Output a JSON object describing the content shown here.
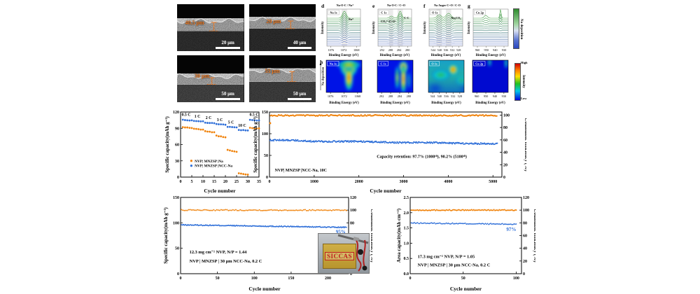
{
  "sem": {
    "panels": [
      {
        "measurement": "40.5 μm",
        "scale_bar": "20 μm"
      },
      {
        "measurement": "20 μm",
        "scale_bar": "40 μm"
      },
      {
        "measurement": "30 μm",
        "scale_bar": "50 μm"
      },
      {
        "measurement": "55 μm",
        "scale_bar": "50 μm"
      }
    ]
  },
  "xps": {
    "xlabel": "Binding Energy (eV)",
    "ylabel": "Intensity",
    "waterfalls": [
      {
        "letter": "d",
        "title": "Na-O-C / Na⁺",
        "species": "Na 1s",
        "annotations": [
          "Na⁺"
        ],
        "ticks": [
          "1076",
          "1072",
          "1068"
        ]
      },
      {
        "letter": "e",
        "title": "Na-O-C / C=O",
        "species": "C 1s",
        "annotations": [
          "CO₃²⁻/C=O",
          "C-C"
        ],
        "ticks": [
          "292",
          "288",
          "284",
          "280"
        ]
      },
      {
        "letter": "f",
        "title": "Na Auger C=O / C-O",
        "species": "O 1s",
        "annotations": [
          "Na₂CO₃"
        ],
        "ticks": [
          "544",
          "540",
          "536",
          "532",
          "528"
        ]
      },
      {
        "letter": "g",
        "title": "",
        "species": "Cu 2p",
        "annotations": [],
        "ticks": [
          "960",
          "950",
          "940",
          "930"
        ]
      }
    ],
    "heatmaps": [
      {
        "letter": "h",
        "species": "Na 1s",
        "ticks": [
          "1076",
          "1072",
          "1068"
        ],
        "ylabel": "Na deposition"
      },
      {
        "letter": "",
        "species": "C 1s",
        "ticks": [
          "292",
          "288",
          "284",
          "280"
        ],
        "ylabel": ""
      },
      {
        "letter": "",
        "species": "O 1s",
        "ticks": [
          "544",
          "540",
          "536",
          "532",
          "528"
        ],
        "ylabel": ""
      },
      {
        "letter": "",
        "species": "Cu 2p",
        "ticks": [
          "960",
          "950",
          "940",
          "930"
        ],
        "ylabel": ""
      }
    ],
    "colorbar_top": {
      "label": "Na deposition"
    },
    "colorbar_bottom": {
      "label": "Intensity",
      "high": "High",
      "low": "Low"
    }
  },
  "inset": {
    "label": "SICCAS"
  },
  "chart_data": [
    {
      "id": "rate",
      "type": "scatter",
      "xlabel": "Cycle number",
      "ylabel": "Specific capacity(mAh g⁻¹)",
      "xlim": [
        0,
        35
      ],
      "ylim": [
        0,
        120
      ],
      "xticks": [
        0,
        5,
        10,
        15,
        20,
        25,
        30,
        35
      ],
      "yticks": [
        0,
        30,
        60,
        90,
        120
      ],
      "cycles_per_step": 5,
      "rate_labels": [
        {
          "text": "0.5 C",
          "x": 2.5,
          "y": 113
        },
        {
          "text": "1 C",
          "x": 7.5,
          "y": 110
        },
        {
          "text": "2 C",
          "x": 12.5,
          "y": 107
        },
        {
          "text": "3 C",
          "x": 17.5,
          "y": 103.5
        },
        {
          "text": "5 C",
          "x": 22.5,
          "y": 99
        },
        {
          "text": "10 C",
          "x": 27.5,
          "y": 93
        },
        {
          "text": "0.5 C",
          "x": 32.8,
          "y": 113
        }
      ],
      "series": [
        {
          "name": "NVP| MNZSP |Na",
          "color": "#f0820a",
          "steps": [
            [
              92,
              90.5
            ],
            [
              89,
              87.5
            ],
            [
              84.5,
              82.5
            ],
            [
              76.5,
              73
            ],
            [
              50,
              46.5
            ],
            [
              7,
              4.5
            ],
            [
              91,
              89.5
            ]
          ]
        },
        {
          "name": "NVP| MNZSP |NCC-Na",
          "color": "#2d6ed8",
          "steps": [
            [
              105.5,
              104.5
            ],
            [
              103.5,
              103
            ],
            [
              100.5,
              99.5
            ],
            [
              97.5,
              96.5
            ],
            [
              93,
              92
            ],
            [
              87,
              86
            ],
            [
              105.5,
              104.5
            ]
          ]
        }
      ],
      "legend_position": "lower-left",
      "grid": false
    },
    {
      "id": "longcycle",
      "type": "scatter",
      "xlabel": "Cycle number",
      "ylabel": "Specific capacity(mAh g⁻¹)",
      "y2label": "Coulombic efficiency (%)",
      "xlim": [
        0,
        5200
      ],
      "ylim": [
        0,
        150
      ],
      "y2lim": [
        0,
        105
      ],
      "xticks": [
        0,
        1000,
        2000,
        3000,
        4000,
        5000
      ],
      "yticks": [
        0,
        50,
        100,
        150
      ],
      "y2ticks": [
        0,
        20,
        40,
        60,
        80,
        100
      ],
      "series": [
        {
          "name": "capacity",
          "axis": "left",
          "color": "#2d6ed8",
          "summary": {
            "start": 85,
            "at_1000": 83.1,
            "end": 76.7,
            "end_cycle": 5100
          }
        },
        {
          "name": "coulombic_efficiency",
          "axis": "right",
          "color": "#f0820a",
          "value": 99.4,
          "first_cycle_value": 87
        }
      ],
      "annotations": [
        {
          "text": "Capacity retention: 97.7% (1000ᵗʰ), 90.2% (5100ᵗʰ)"
        },
        {
          "text": "NVP| MNZSP |NCC-Na, 10C"
        }
      ],
      "grid": false
    },
    {
      "id": "pouch1",
      "type": "scatter",
      "xlabel": "Cycle number",
      "ylabel": "Specific capacity(mAh g⁻¹)",
      "y2label": "Coulombic efficiency (%)",
      "xlim": [
        0,
        228
      ],
      "ylim": [
        0,
        150
      ],
      "y2lim": [
        0,
        120
      ],
      "xticks": [
        0,
        50,
        100,
        150,
        200
      ],
      "yticks": [
        0,
        50,
        100,
        150
      ],
      "y2ticks": [
        0,
        20,
        40,
        60,
        80,
        100,
        120
      ],
      "series": [
        {
          "name": "capacity",
          "color": "#2d6ed8",
          "start": 96,
          "end": 91,
          "cycles": 225
        },
        {
          "name": "coulombic_efficiency",
          "color": "#f0820a",
          "value": 100
        }
      ],
      "retention_label": "95%",
      "text_lines": [
        "12.3 mg cm⁻² NVP, N/P = 1.44",
        "NVP | MNZSP | 30 μm NCC-Na, 0.2 C"
      ],
      "grid": false
    },
    {
      "id": "pouch2",
      "type": "scatter",
      "xlabel": "Cycle number",
      "ylabel": "Area capacity(mAh cm⁻²)",
      "y2label": "Coulombic efficiency (%)",
      "xlim": [
        0,
        105
      ],
      "ylim": [
        0,
        2.5
      ],
      "y2lim": [
        0,
        120
      ],
      "xticks": [
        0,
        50,
        100
      ],
      "yticks": [
        "0.0",
        "0.5",
        "1.0",
        "1.5",
        "2.0",
        "2.5"
      ],
      "y2ticks": [
        0,
        20,
        40,
        60,
        80,
        100,
        120
      ],
      "series": [
        {
          "name": "capacity",
          "color": "#2d6ed8",
          "start": 1.66,
          "end": 1.62,
          "cycles": 100
        },
        {
          "name": "coulombic_efficiency",
          "color": "#f0820a",
          "value": 100
        }
      ],
      "retention_label": "97%",
      "text_lines": [
        "17.3 mg cm⁻² NVP, N/P = 1.05",
        "NVP | MNZSP | 30 μm NCC-Na, 0.2 C"
      ],
      "grid": false
    }
  ]
}
